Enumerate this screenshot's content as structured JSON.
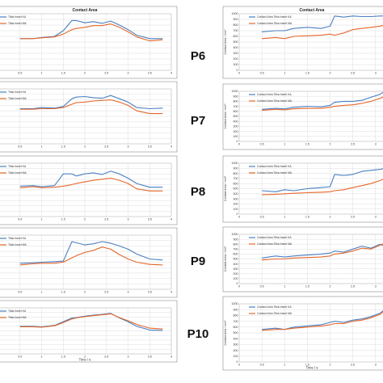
{
  "figure_title": "Contact Area",
  "colors": {
    "series_1": "#4a7fc1",
    "series_2": "#e5672b",
    "grid": "#d4d4d4",
    "frame": "#8a8a8a"
  },
  "panel_labels": [
    "P6",
    "P7",
    "P8",
    "P9",
    "P10"
  ],
  "left_column": {
    "title": "Contact Area",
    "legend": [
      "Tibia Insert KA",
      "Tibia Insert MA"
    ],
    "xlabel": "Time / s",
    "xticks": [
      "0",
      "0.5",
      "1",
      "1.5",
      "2",
      "2.5",
      "3",
      "3.5",
      "4"
    ]
  },
  "right_column": {
    "title": "Contact Area",
    "legend": [
      "Contact Area Tibia Insert KA",
      "Contact Area Tibia Insert MA"
    ],
    "ylabel": "Contact Area / mm²",
    "xlabel": "Time / s",
    "xticks": [
      "0",
      "0.5",
      "1",
      "1.5",
      "2",
      "2.5",
      "3"
    ],
    "yticks": [
      "0",
      "100",
      "200",
      "300",
      "400",
      "500",
      "600",
      "700",
      "800",
      "900",
      "1000"
    ]
  },
  "chart_data": [
    {
      "type": "line",
      "panel": "left-1",
      "xlim": [
        0,
        4
      ],
      "ylim": [
        0,
        1000
      ],
      "series": [
        {
          "name": "Tibia Insert KA",
          "x": [
            0.5,
            0.8,
            1.0,
            1.3,
            1.5,
            1.7,
            1.8,
            2.0,
            2.2,
            2.4,
            2.6,
            2.8,
            3.0,
            3.2,
            3.5,
            3.8
          ],
          "values": [
            560,
            560,
            580,
            600,
            700,
            880,
            880,
            840,
            860,
            830,
            870,
            800,
            720,
            620,
            560,
            560
          ]
        },
        {
          "name": "Tibia Insert MA",
          "x": [
            0.5,
            0.8,
            1.0,
            1.3,
            1.5,
            1.7,
            1.8,
            2.0,
            2.2,
            2.4,
            2.6,
            2.8,
            3.0,
            3.2,
            3.5,
            3.8
          ],
          "values": [
            560,
            560,
            575,
            590,
            640,
            720,
            740,
            760,
            790,
            790,
            820,
            760,
            680,
            590,
            520,
            540
          ]
        }
      ]
    },
    {
      "type": "line",
      "panel": "left-2",
      "xlim": [
        0,
        4
      ],
      "ylim": [
        0,
        1000
      ],
      "series": [
        {
          "name": "Tibia Insert KA",
          "x": [
            0.5,
            0.8,
            1.0,
            1.3,
            1.5,
            1.7,
            1.8,
            2.0,
            2.2,
            2.4,
            2.6,
            2.8,
            3.0,
            3.2,
            3.5,
            3.8
          ],
          "values": [
            640,
            640,
            660,
            650,
            680,
            820,
            850,
            860,
            840,
            830,
            880,
            820,
            760,
            660,
            640,
            650
          ]
        },
        {
          "name": "Tibia Insert MA",
          "x": [
            0.5,
            0.8,
            1.0,
            1.3,
            1.5,
            1.7,
            1.8,
            2.0,
            2.2,
            2.4,
            2.6,
            2.8,
            3.0,
            3.2,
            3.5,
            3.8
          ],
          "values": [
            630,
            630,
            640,
            640,
            660,
            720,
            750,
            760,
            780,
            790,
            800,
            760,
            700,
            600,
            550,
            550
          ]
        }
      ]
    },
    {
      "type": "line",
      "panel": "left-3",
      "xlim": [
        0,
        4
      ],
      "ylim": [
        0,
        1000
      ],
      "series": [
        {
          "name": "Tibia Insert KA",
          "x": [
            0.5,
            0.8,
            1.0,
            1.3,
            1.5,
            1.7,
            1.8,
            2.0,
            2.2,
            2.4,
            2.6,
            2.8,
            3.0,
            3.2,
            3.5,
            3.8
          ],
          "values": [
            570,
            580,
            560,
            580,
            800,
            800,
            760,
            800,
            820,
            790,
            850,
            800,
            720,
            620,
            550,
            550
          ]
        },
        {
          "name": "Tibia Insert MA",
          "x": [
            0.5,
            0.8,
            1.0,
            1.3,
            1.5,
            1.7,
            1.8,
            2.0,
            2.2,
            2.4,
            2.6,
            2.8,
            3.0,
            3.2,
            3.5,
            3.8
          ],
          "values": [
            540,
            560,
            540,
            550,
            570,
            600,
            620,
            650,
            680,
            700,
            720,
            680,
            620,
            520,
            480,
            480
          ]
        }
      ]
    },
    {
      "type": "line",
      "panel": "left-4",
      "xlim": [
        0,
        4
      ],
      "ylim": [
        0,
        1000
      ],
      "series": [
        {
          "name": "Tibia Insert KA",
          "x": [
            0.5,
            0.8,
            1.0,
            1.3,
            1.5,
            1.7,
            1.8,
            2.0,
            2.2,
            2.4,
            2.6,
            2.8,
            3.0,
            3.2,
            3.5,
            3.8
          ],
          "values": [
            480,
            490,
            500,
            510,
            520,
            880,
            860,
            820,
            840,
            880,
            850,
            800,
            740,
            650,
            560,
            540
          ]
        },
        {
          "name": "Tibia Insert MA",
          "x": [
            0.5,
            0.8,
            1.0,
            1.3,
            1.5,
            1.7,
            1.8,
            2.0,
            2.2,
            2.4,
            2.6,
            2.8,
            3.0,
            3.2,
            3.5,
            3.8
          ],
          "values": [
            450,
            470,
            480,
            480,
            500,
            580,
            620,
            680,
            720,
            780,
            740,
            640,
            560,
            500,
            460,
            450
          ]
        }
      ]
    },
    {
      "type": "line",
      "panel": "left-5",
      "xlim": [
        0,
        4
      ],
      "ylim": [
        0,
        1000
      ],
      "series": [
        {
          "name": "Tibia Insert KA",
          "x": [
            0.5,
            0.8,
            1.0,
            1.3,
            1.5,
            1.7,
            1.8,
            2.0,
            2.2,
            2.4,
            2.6,
            2.8,
            3.0,
            3.2,
            3.5,
            3.8
          ],
          "values": [
            600,
            600,
            590,
            620,
            700,
            780,
            790,
            820,
            840,
            860,
            880,
            780,
            700,
            600,
            520,
            510
          ]
        },
        {
          "name": "Tibia Insert MA",
          "x": [
            0.5,
            0.8,
            1.0,
            1.3,
            1.5,
            1.7,
            1.8,
            2.0,
            2.2,
            2.4,
            2.6,
            2.8,
            3.0,
            3.2,
            3.5,
            3.8
          ],
          "values": [
            590,
            590,
            580,
            610,
            680,
            760,
            780,
            810,
            830,
            850,
            870,
            790,
            720,
            640,
            560,
            540
          ]
        }
      ]
    },
    {
      "type": "line",
      "panel": "P6",
      "xlim": [
        0,
        3.2
      ],
      "ylim": [
        0,
        1000
      ],
      "series": [
        {
          "name": "Contact Area Tibia Insert KA",
          "x": [
            0.5,
            0.8,
            1.0,
            1.2,
            1.5,
            1.8,
            2.0,
            2.1,
            2.3,
            2.5,
            2.7,
            2.9,
            3.1,
            3.2
          ],
          "values": [
            680,
            700,
            700,
            740,
            760,
            740,
            780,
            960,
            940,
            960,
            950,
            950,
            960,
            960
          ]
        },
        {
          "name": "Contact Area Tibia Insert MA",
          "x": [
            0.5,
            0.8,
            1.0,
            1.2,
            1.5,
            1.8,
            2.0,
            2.1,
            2.3,
            2.5,
            2.7,
            2.9,
            3.1,
            3.2
          ],
          "values": [
            560,
            580,
            560,
            600,
            610,
            620,
            640,
            620,
            660,
            720,
            740,
            760,
            780,
            800
          ]
        }
      ]
    },
    {
      "type": "line",
      "panel": "P7",
      "xlim": [
        0,
        3.2
      ],
      "ylim": [
        0,
        1000
      ],
      "series": [
        {
          "name": "Contact Area Tibia Insert KA",
          "x": [
            0.5,
            0.8,
            1.0,
            1.2,
            1.5,
            1.8,
            2.0,
            2.1,
            2.3,
            2.5,
            2.7,
            2.9,
            3.1,
            3.2
          ],
          "values": [
            640,
            660,
            650,
            680,
            700,
            690,
            720,
            780,
            800,
            800,
            820,
            880,
            940,
            1000
          ]
        },
        {
          "name": "Contact Area Tibia Insert MA",
          "x": [
            0.5,
            0.8,
            1.0,
            1.2,
            1.5,
            1.8,
            2.0,
            2.1,
            2.3,
            2.5,
            2.7,
            2.9,
            3.1,
            3.2
          ],
          "values": [
            620,
            640,
            630,
            650,
            660,
            660,
            680,
            700,
            720,
            730,
            760,
            800,
            860,
            900
          ]
        }
      ]
    },
    {
      "type": "line",
      "panel": "P8",
      "xlim": [
        0,
        3.2
      ],
      "ylim": [
        0,
        1000
      ],
      "series": [
        {
          "name": "Contact Area Tibia Insert KA",
          "x": [
            0.5,
            0.8,
            1.0,
            1.2,
            1.5,
            1.8,
            2.0,
            2.1,
            2.3,
            2.5,
            2.7,
            2.9,
            3.1,
            3.2
          ],
          "values": [
            460,
            440,
            480,
            460,
            500,
            520,
            540,
            780,
            760,
            780,
            840,
            860,
            880,
            900
          ]
        },
        {
          "name": "Contact Area Tibia Insert MA",
          "x": [
            0.5,
            0.8,
            1.0,
            1.2,
            1.5,
            1.8,
            2.0,
            2.1,
            2.3,
            2.5,
            2.7,
            2.9,
            3.1,
            3.2
          ],
          "values": [
            380,
            390,
            400,
            410,
            420,
            430,
            440,
            460,
            480,
            520,
            560,
            600,
            660,
            700
          ]
        }
      ]
    },
    {
      "type": "line",
      "panel": "P9",
      "xlim": [
        0,
        3.2
      ],
      "ylim": [
        0,
        1000
      ],
      "series": [
        {
          "name": "Contact Area Tibia Insert KA",
          "x": [
            0.5,
            0.8,
            1.0,
            1.2,
            1.5,
            1.8,
            2.0,
            2.1,
            2.3,
            2.5,
            2.7,
            2.9,
            3.1,
            3.2
          ],
          "values": [
            520,
            560,
            540,
            560,
            580,
            600,
            620,
            660,
            640,
            700,
            760,
            720,
            800,
            760
          ]
        },
        {
          "name": "Contact Area Tibia Insert MA",
          "x": [
            0.5,
            0.8,
            1.0,
            1.2,
            1.5,
            1.8,
            2.0,
            2.1,
            2.3,
            2.5,
            2.7,
            2.9,
            3.1,
            3.2
          ],
          "values": [
            480,
            500,
            500,
            520,
            530,
            540,
            560,
            600,
            620,
            660,
            720,
            700,
            780,
            820
          ]
        }
      ]
    },
    {
      "type": "line",
      "panel": "P10",
      "xlim": [
        0,
        3.2
      ],
      "ylim": [
        0,
        1000
      ],
      "series": [
        {
          "name": "Contact Area Tibia Insert KA",
          "x": [
            0.5,
            0.8,
            1.0,
            1.2,
            1.5,
            1.8,
            2.0,
            2.1,
            2.3,
            2.5,
            2.7,
            2.9,
            3.1,
            3.2
          ],
          "values": [
            560,
            580,
            560,
            600,
            620,
            640,
            680,
            700,
            680,
            720,
            740,
            780,
            840,
            900
          ]
        },
        {
          "name": "Contact Area Tibia Insert MA",
          "x": [
            0.5,
            0.8,
            1.0,
            1.2,
            1.5,
            1.8,
            2.0,
            2.1,
            2.3,
            2.5,
            2.7,
            2.9,
            3.1,
            3.2
          ],
          "values": [
            540,
            560,
            560,
            580,
            600,
            620,
            640,
            660,
            660,
            700,
            720,
            760,
            820,
            880
          ]
        }
      ]
    }
  ]
}
